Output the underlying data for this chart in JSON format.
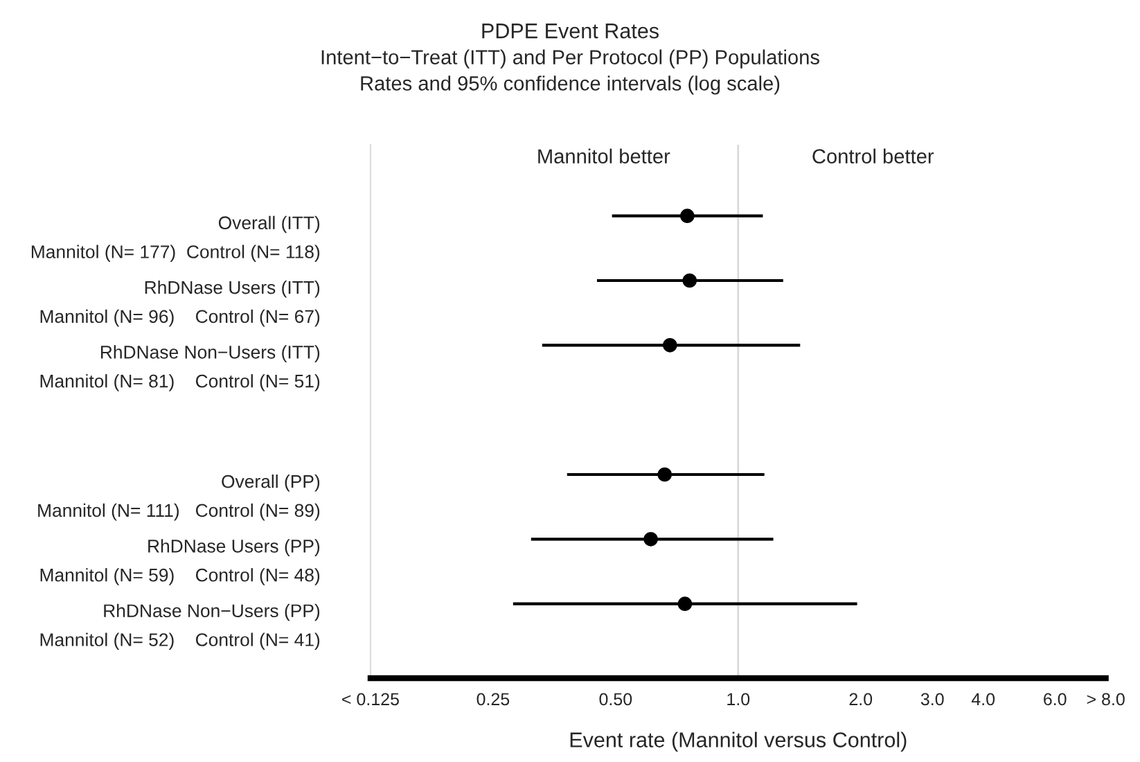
{
  "chart_data": {
    "type": "scatter",
    "orientation": "horizontal",
    "title": "PDPE Event Rates",
    "subtitle": "Intent−to−Treat (ITT) and Per Protocol (PP) Populations\nRates and 95% confidence intervals (log scale)",
    "xlabel": "Event rate (Mannitol versus Control)",
    "categories": [
      "Overall (ITT)\nMannitol (N= 177)  Control (N= 118)",
      "RhDNase Users (ITT)\nMannitol (N= 96)    Control (N= 67)",
      "RhDNase Non−Users (ITT)\nMannitol (N= 81)    Control (N= 51)",
      null,
      "Overall (PP)\nMannitol (N= 111)   Control (N= 89)",
      "RhDNase Users (PP)\nMannitol (N= 59)    Control (N= 48)",
      "RhDNase Non−Users (PP)\nMannitol (N= 52)    Control (N= 41)"
    ],
    "series": [
      {
        "color": "#000000",
        "values": [
          0.75,
          0.76,
          0.68,
          null,
          0.66,
          0.61,
          0.74
        ],
        "errors": [
          [
            0.49,
            1.15
          ],
          [
            0.45,
            1.29
          ],
          [
            0.33,
            1.42
          ],
          null,
          [
            0.38,
            1.16
          ],
          [
            0.31,
            1.22
          ],
          [
            0.28,
            1.96
          ]
        ]
      }
    ],
    "log": "x",
    "marker": "circle",
    "xlim": [
      0.125,
      8.0
    ],
    "xticks": [
      {
        "value": 0.125,
        "label": "< 0.125"
      },
      0.25,
      {
        "value": 0.5,
        "label": "0.50"
      },
      {
        "value": 1,
        "label": "1.0"
      },
      {
        "value": 2,
        "label": "2.0"
      },
      {
        "value": 3,
        "label": "3.0"
      },
      {
        "value": 4,
        "label": "4.0"
      },
      {
        "value": 6,
        "label": "6.0"
      },
      {
        "value": 8,
        "label": "> 8.0"
      }
    ],
    "ref_lines": [
      {
        "axis": "x",
        "value": 1,
        "color": "#d9d9d9"
      }
    ],
    "annotations": [
      "Mannitol better",
      "Control better"
    ],
    "grid": false,
    "legend": false
  }
}
